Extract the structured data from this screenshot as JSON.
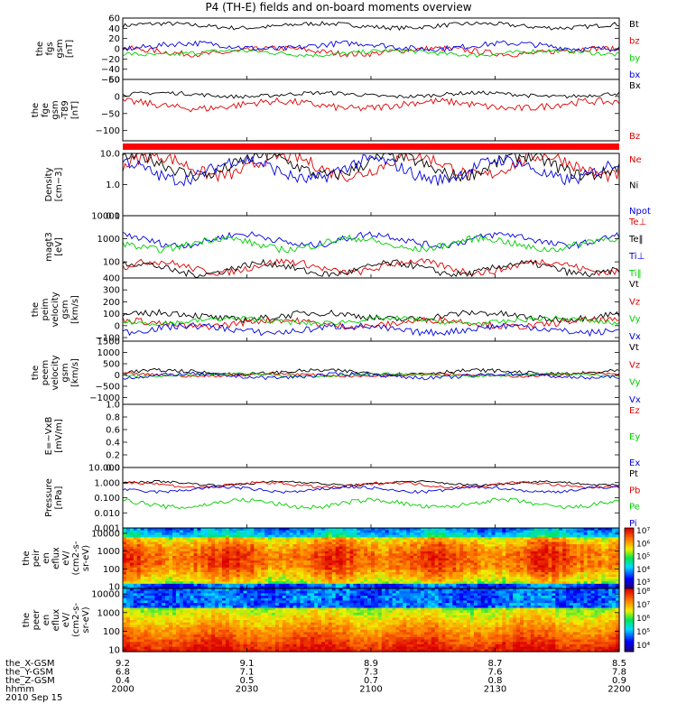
{
  "title": "P4 (TH-E) fields and on-board moments overview",
  "colors": {
    "black": "#000000",
    "red": "#e00000",
    "green": "#00d000",
    "blue": "#0000e0",
    "bar_red": "#ff0000"
  },
  "chart_data": [
    {
      "type": "line",
      "id": "fgs",
      "ylabel": [
        "the",
        "fgs",
        "gsm",
        "[nT]"
      ],
      "ylim": [
        -60,
        60
      ],
      "yticks": [
        {
          "v": 60,
          "t": "60"
        },
        {
          "v": 40,
          "t": "40"
        },
        {
          "v": 20,
          "t": "20"
        },
        {
          "v": 0,
          "t": "0"
        },
        {
          "v": -20,
          "t": "−20"
        },
        {
          "v": -40,
          "t": "−40"
        },
        {
          "v": -60,
          "t": "−60"
        }
      ],
      "series": [
        {
          "name": "Bt",
          "color": "black",
          "base": 45,
          "noise": 6
        },
        {
          "name": "bz",
          "color": "red",
          "base": -5,
          "noise": 8
        },
        {
          "name": "by",
          "color": "green",
          "base": -8,
          "noise": 6
        },
        {
          "name": "bx",
          "color": "blue",
          "base": 5,
          "noise": 8
        }
      ]
    },
    {
      "type": "line",
      "id": "fge",
      "ylabel": [
        "the",
        "fge",
        "gsm",
        "-T89",
        "[nT]"
      ],
      "ylim": [
        -130,
        50
      ],
      "yticks": [
        {
          "v": 50,
          "t": "50"
        },
        {
          "v": 0,
          "t": "0"
        },
        {
          "v": -50,
          "t": "−50"
        },
        {
          "v": -100,
          "t": "−100"
        }
      ],
      "series": [
        {
          "name": "Bx",
          "color": "black",
          "base": 5,
          "noise": 8
        },
        {
          "name": "Bz",
          "color": "red",
          "base": -25,
          "noise": 15
        }
      ]
    },
    {
      "type": "line",
      "id": "density",
      "ylabel": [
        "Density",
        "[cm−3]"
      ],
      "log": true,
      "ylim": [
        0.1,
        10
      ],
      "yticks": [
        {
          "v": 10,
          "t": "10.0"
        },
        {
          "v": 1,
          "t": "1.0"
        },
        {
          "v": 0.1,
          "t": "0.1"
        }
      ],
      "series": [
        {
          "name": "Ne",
          "color": "red",
          "base": 4,
          "noise": 0.4
        },
        {
          "name": "Ni",
          "color": "black",
          "base": 4,
          "noise": 0.4
        },
        {
          "name": "Npot",
          "color": "blue",
          "base": 3,
          "noise": 0.4
        }
      ]
    },
    {
      "type": "line",
      "id": "temp",
      "ylabel": [
        "magt3",
        "[eV]"
      ],
      "log": true,
      "ylim": [
        20,
        10000
      ],
      "yticks": [
        {
          "v": 10000,
          "t": "10000"
        },
        {
          "v": 1000,
          "t": "1000"
        },
        {
          "v": 100,
          "t": "100"
        }
      ],
      "series": [
        {
          "name": "Te⊥",
          "color": "red",
          "base": 60,
          "noise": 0.3
        },
        {
          "name": "Te‖",
          "color": "black",
          "base": 50,
          "noise": 0.3
        },
        {
          "name": "Ti⊥",
          "color": "blue",
          "base": 900,
          "noise": 0.3
        },
        {
          "name": "Ti‖",
          "color": "green",
          "base": 600,
          "noise": 0.3
        }
      ]
    },
    {
      "type": "line",
      "id": "peim",
      "ylabel": [
        "the",
        "peim",
        "velocity",
        "gsm",
        "[km/s]"
      ],
      "ylim": [
        -130,
        400
      ],
      "yticks": [
        {
          "v": 400,
          "t": "400"
        },
        {
          "v": 300,
          "t": "300"
        },
        {
          "v": 200,
          "t": "200"
        },
        {
          "v": 100,
          "t": "100"
        },
        {
          "v": 0,
          "t": "0"
        },
        {
          "v": -100,
          "t": "−100"
        }
      ],
      "series": [
        {
          "name": "Vt",
          "color": "black",
          "base": 80,
          "noise": 40
        },
        {
          "name": "Vz",
          "color": "red",
          "base": 20,
          "noise": 40
        },
        {
          "name": "Vy",
          "color": "green",
          "base": 40,
          "noise": 30
        },
        {
          "name": "Vx",
          "color": "blue",
          "base": -30,
          "noise": 40
        }
      ]
    },
    {
      "type": "line",
      "id": "peem",
      "ylabel": [
        "the",
        "peem",
        "velocity",
        "gsm",
        "[km/s]"
      ],
      "ylim": [
        -1300,
        1500
      ],
      "yticks": [
        {
          "v": 1500,
          "t": "1500"
        },
        {
          "v": 1000,
          "t": "1000"
        },
        {
          "v": 500,
          "t": "500"
        },
        {
          "v": 0,
          "t": "0"
        },
        {
          "v": -500,
          "t": "−500"
        },
        {
          "v": -1000,
          "t": "−1000"
        }
      ],
      "series": [
        {
          "name": "Vt",
          "color": "black",
          "base": 120,
          "noise": 120
        },
        {
          "name": "Vz",
          "color": "red",
          "base": 0,
          "noise": 80
        },
        {
          "name": "Vy",
          "color": "green",
          "base": 0,
          "noise": 80
        },
        {
          "name": "Vx",
          "color": "blue",
          "base": -40,
          "noise": 120
        }
      ]
    },
    {
      "type": "line",
      "id": "efield",
      "ylabel": [
        "E=−VxB",
        "[mV/m]"
      ],
      "ylim": [
        0,
        1
      ],
      "yticks": [
        {
          "v": 1,
          "t": "1.0"
        },
        {
          "v": 0.8,
          "t": "0.8"
        },
        {
          "v": 0.6,
          "t": "0.6"
        },
        {
          "v": 0.4,
          "t": "0.4"
        },
        {
          "v": 0.2,
          "t": "0.2"
        },
        {
          "v": 0,
          "t": "0.0"
        }
      ],
      "series": [
        {
          "name": "Ez",
          "color": "red",
          "base": null
        },
        {
          "name": "Ey",
          "color": "green",
          "base": null
        },
        {
          "name": "Ex",
          "color": "blue",
          "base": null
        }
      ]
    },
    {
      "type": "line",
      "id": "pressure",
      "ylabel": [
        "Pressure",
        "[nPa]"
      ],
      "log": true,
      "ylim": [
        0.001,
        10
      ],
      "yticks": [
        {
          "v": 10,
          "t": "10.000"
        },
        {
          "v": 1,
          "t": "1.000"
        },
        {
          "v": 0.1,
          "t": "0.100"
        },
        {
          "v": 0.01,
          "t": "0.010"
        },
        {
          "v": 0.001,
          "t": "0.001"
        }
      ],
      "series": [
        {
          "name": "Pt",
          "color": "black",
          "base": 0.9,
          "noise": 0.15
        },
        {
          "name": "Pb",
          "color": "red",
          "base": 0.7,
          "noise": 0.2
        },
        {
          "name": "Pe",
          "color": "green",
          "base": 0.04,
          "noise": 0.3
        },
        {
          "name": "Pi",
          "color": "blue",
          "base": 0.35,
          "noise": 0.2
        }
      ]
    },
    {
      "type": "heatmap",
      "id": "peir",
      "ylabel": [
        "the",
        "peir",
        "en",
        "eflux",
        "eV/",
        "(cm2-s-",
        "sr-eV)"
      ],
      "log": true,
      "ylim": [
        8,
        20000
      ],
      "yticks": [
        {
          "v": 10000,
          "t": "10000"
        },
        {
          "v": 1000,
          "t": "1000"
        },
        {
          "v": 100,
          "t": "100"
        },
        {
          "v": 10,
          "t": "10"
        }
      ],
      "colorbar": [
        "10⁷",
        "10⁶",
        "10⁵",
        "10⁴",
        "10³"
      ]
    },
    {
      "type": "heatmap",
      "id": "peer",
      "ylabel": [
        "the",
        "peer",
        "en",
        "eflux",
        "eV/",
        "(cm2-s-",
        "sr-eV)"
      ],
      "log": true,
      "ylim": [
        8,
        20000
      ],
      "yticks": [
        {
          "v": 10000,
          "t": "10000"
        },
        {
          "v": 1000,
          "t": "1000"
        },
        {
          "v": 100,
          "t": "100"
        },
        {
          "v": 10,
          "t": "10"
        }
      ],
      "colorbar": [
        "10⁸",
        "10⁷",
        "10⁶",
        "10⁵",
        "10⁴"
      ]
    }
  ],
  "xaxis": {
    "rows": [
      {
        "label": "the_X-GSM",
        "values": [
          "9.2",
          "9.1",
          "8.9",
          "8.7",
          "8.5"
        ]
      },
      {
        "label": "the_Y-GSM",
        "values": [
          "6.8",
          "7.1",
          "7.3",
          "7.6",
          "7.8"
        ]
      },
      {
        "label": "the_Z-GSM",
        "values": [
          "0.4",
          "0.5",
          "0.7",
          "0.8",
          "0.9"
        ]
      },
      {
        "label": "hhmm",
        "values": [
          "2000",
          "2030",
          "2100",
          "2130",
          "2200"
        ]
      }
    ],
    "date": "2010 Sep 15"
  }
}
